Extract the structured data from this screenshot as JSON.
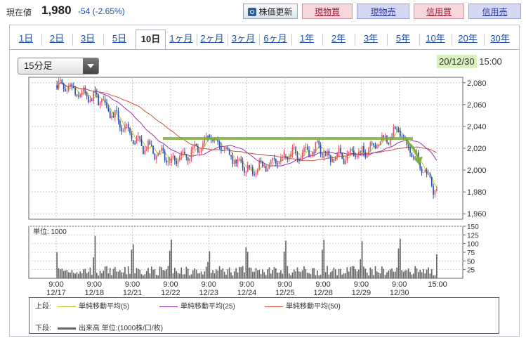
{
  "header": {
    "price_label": "現在値",
    "price_value": "1,980",
    "price_change": "-54 (-2.65%)",
    "buttons": {
      "update": "株価更新",
      "genbutsu_buy": "現物買",
      "genbutsu_sell": "現物売",
      "shinyo_buy": "信用買",
      "shinyo_sell": "信用売"
    }
  },
  "tabs": [
    {
      "label": "1日"
    },
    {
      "label": "2日"
    },
    {
      "label": "3日"
    },
    {
      "label": "5日"
    },
    {
      "label": "10日",
      "active": true
    },
    {
      "label": "1ヶ月"
    },
    {
      "label": "2ヶ月"
    },
    {
      "label": "3ヶ月"
    },
    {
      "label": "6ヶ月"
    },
    {
      "label": "1年"
    },
    {
      "label": "2年"
    },
    {
      "label": "3年"
    },
    {
      "label": "5年"
    },
    {
      "label": "10年"
    },
    {
      "label": "20年"
    },
    {
      "label": "30年"
    }
  ],
  "interval_select": {
    "value": "15分足"
  },
  "date_display": {
    "date": "20/12/30",
    "time": "15:00"
  },
  "colors": {
    "up": "#e05565",
    "down": "#2a4fa8",
    "ma5": "#b7c936",
    "ma25": "#9a2fb8",
    "ma50": "#c9553a",
    "volume": "#666666",
    "annotation": "#7fae3a"
  },
  "chart_data": {
    "type": "candlestick",
    "unit": "JPY",
    "ylim": [
      1955,
      2085
    ],
    "yticks": [
      1960,
      1980,
      2000,
      2020,
      2040,
      2060,
      2080
    ],
    "ytick_labels": [
      "1,960",
      "1,980",
      "2,000",
      "2,020",
      "2,040",
      "2,060",
      "2,080"
    ],
    "x_ticks": [
      {
        "time": "9:00",
        "date": "12/17"
      },
      {
        "time": "9:00",
        "date": "12/18"
      },
      {
        "time": "9:00",
        "date": "12/21"
      },
      {
        "time": "9:00",
        "date": "12/22"
      },
      {
        "time": "9:00",
        "date": "12/23"
      },
      {
        "time": "9:00",
        "date": "12/24"
      },
      {
        "time": "9:00",
        "date": "12/25"
      },
      {
        "time": "9:00",
        "date": "12/28"
      },
      {
        "time": "9:00",
        "date": "12/29"
      },
      {
        "time": "9:00",
        "date": "12/30"
      },
      {
        "time": "15:00",
        "date": ""
      }
    ],
    "session_close": [
      2065,
      2030,
      2010,
      2025,
      2000,
      2010,
      2020,
      2015,
      2035,
      1980
    ],
    "resistance_level": 2029,
    "volume": {
      "label": "単位: 1000",
      "ylim": [
        0,
        150
      ],
      "yticks": [
        25,
        50,
        75,
        100,
        125,
        150
      ],
      "ytick_labels": [
        "25",
        "50",
        "75",
        "100",
        "125",
        "150"
      ]
    }
  },
  "legend": {
    "upper_label": "上段:",
    "ma5": "単純移動平均(5)",
    "ma25": "単純移動平均(25)",
    "ma50": "単純移動平均(50)",
    "lower_label": "下段:",
    "volume": "出来高 単位:(1000株/口/枚)"
  }
}
